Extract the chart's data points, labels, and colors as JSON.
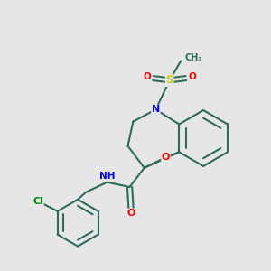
{
  "background_color": "#e6e6e6",
  "bond_color": "#2d6b5e",
  "atom_colors": {
    "N": "#0000ff",
    "O": "#ff0000",
    "S": "#cccc00",
    "Cl": "#008800",
    "C": "#2d6b5e"
  },
  "figsize": [
    3.0,
    3.0
  ],
  "dpi": 100
}
